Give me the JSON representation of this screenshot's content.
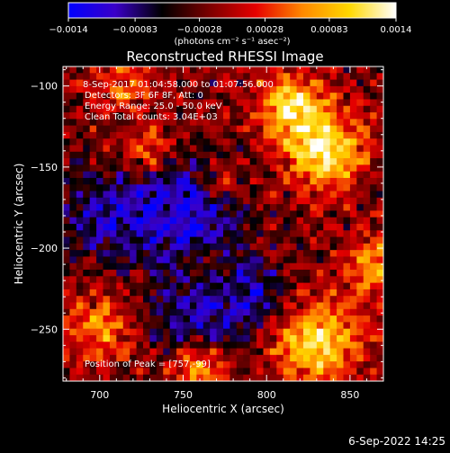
{
  "chart_data": {
    "type": "heatmap",
    "title": "Reconstructed RHESSI Image",
    "xlabel": "Heliocentric X (arcsec)",
    "ylabel": "Heliocentric Y (arcsec)",
    "xlim": [
      678,
      870
    ],
    "ylim": [
      -282,
      -88
    ],
    "x_ticks": [
      700,
      750,
      800,
      850
    ],
    "y_ticks": [
      -100,
      -150,
      -200,
      -250
    ],
    "colorbar": {
      "colors": [
        "#0000ff",
        "#3a00c8",
        "#000000",
        "#7a0000",
        "#e60000",
        "#ff8800",
        "#ffd800",
        "#ffffff"
      ],
      "range": [
        -0.0014,
        0.0014
      ],
      "tick_labels": [
        "−0.0014",
        "−0.00083",
        "−0.00028",
        "0.00028",
        "0.00083",
        "0.0014"
      ],
      "unit_label": "(photons cm⁻² s⁻¹ asec⁻²)"
    },
    "annotations": [
      "8-Sep-2017 01:04:58.000 to 01:07:56.000",
      "Detectors: 3F 6F 8F, Att: 0",
      "Energy Range: 25.0 - 50.0 keV",
      "Clean     Total counts: 3.04E+03"
    ],
    "peak_label": "Position of Peak = [757,-99]",
    "peak": [
      757,
      -99
    ],
    "hot_spots": [
      {
        "x": 835,
        "y": -140,
        "level": 1.0,
        "sigma": 17
      },
      {
        "x": 815,
        "y": -112,
        "level": 0.85,
        "sigma": 14
      },
      {
        "x": 830,
        "y": -258,
        "level": 0.95,
        "sigma": 18
      },
      {
        "x": 760,
        "y": -272,
        "level": 0.75,
        "sigma": 12
      },
      {
        "x": 700,
        "y": -250,
        "level": 0.6,
        "sigma": 14
      },
      {
        "x": 715,
        "y": -100,
        "level": 0.5,
        "sigma": 12
      },
      {
        "x": 730,
        "y": -140,
        "level": 0.55,
        "sigma": 10
      },
      {
        "x": 865,
        "y": -210,
        "level": 0.7,
        "sigma": 12
      },
      {
        "x": 775,
        "y": -160,
        "level": 0.4,
        "sigma": 9
      },
      {
        "x": 760,
        "y": -210,
        "level": 0.35,
        "sigma": 8
      }
    ],
    "cold_spots": [
      {
        "x": 750,
        "y": -180,
        "level": -0.7,
        "sigma": 25
      },
      {
        "x": 760,
        "y": -245,
        "level": -0.6,
        "sigma": 18
      },
      {
        "x": 795,
        "y": -230,
        "level": -0.5,
        "sigma": 14
      },
      {
        "x": 700,
        "y": -180,
        "level": -0.5,
        "sigma": 18
      }
    ]
  },
  "footer_timestamp": "6-Sep-2022 14:25"
}
